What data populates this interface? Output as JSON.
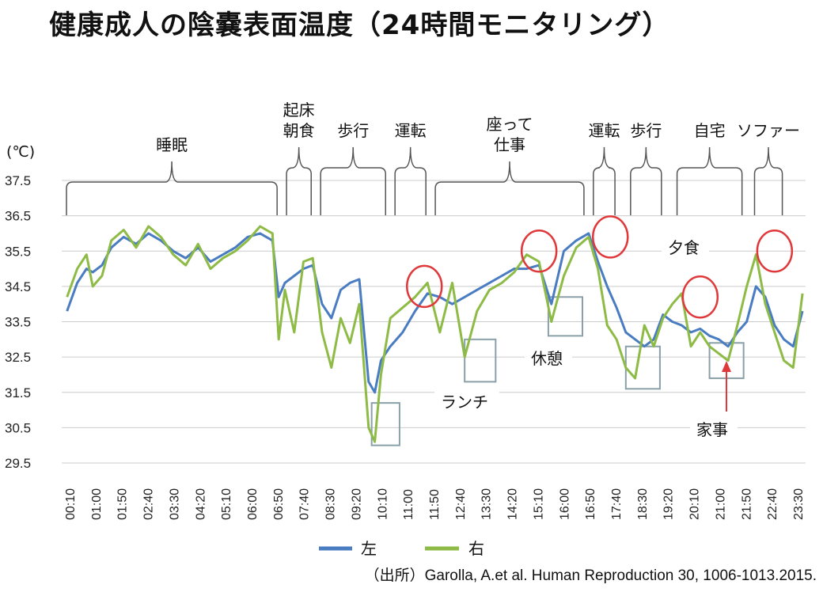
{
  "title": "健康成人の陰嚢表面温度（24時間モニタリング）",
  "source": "（出所）Garolla, A.et al. Human Reproduction 30, 1006-1013.2015.",
  "unit_label": "(℃)",
  "colors": {
    "left": "#4a7cc2",
    "right": "#8dbb45",
    "grid": "#cccccc",
    "bracket": "#555555",
    "box": "#8aa0a8",
    "circle": "#e0393b",
    "arrow": "#e0393b"
  },
  "chart_data": {
    "type": "line",
    "title": "健康成人の陰嚢表面温度（24時間モニタリング）",
    "xlabel": "",
    "ylabel": "(℃)",
    "ylim": [
      29.5,
      37.5
    ],
    "yticks": [
      "37.5",
      "36.5",
      "35.5",
      "34.5",
      "33.5",
      "32.5",
      "31.5",
      "30.5",
      "29.5"
    ],
    "ytick_values": [
      37.5,
      36.5,
      35.5,
      34.5,
      33.5,
      32.5,
      31.5,
      30.5,
      29.5
    ],
    "x_tick_labels": [
      "00:10",
      "01:00",
      "01:50",
      "02:40",
      "03:30",
      "04:20",
      "05:10",
      "06:00",
      "06:50",
      "07:40",
      "08:30",
      "09:20",
      "10:10",
      "11:00",
      "11:50",
      "12:40",
      "13:30",
      "14:20",
      "15:10",
      "16:00",
      "16:50",
      "17:40",
      "18:30",
      "19:20",
      "20:10",
      "21:00",
      "21:50",
      "22:40",
      "23:30"
    ],
    "x_time_hours": [
      0,
      24
    ],
    "grid": true,
    "legend_position": "bottom",
    "series": [
      {
        "name": "左",
        "x": [
          0.17,
          0.5,
          0.8,
          1.0,
          1.3,
          1.6,
          2.0,
          2.4,
          2.8,
          3.2,
          3.6,
          4.0,
          4.4,
          4.8,
          5.2,
          5.6,
          6.0,
          6.4,
          6.8,
          7.0,
          7.2,
          7.5,
          7.8,
          8.1,
          8.4,
          8.7,
          9.0,
          9.3,
          9.6,
          9.9,
          10.1,
          10.3,
          10.6,
          11.0,
          11.4,
          11.8,
          12.2,
          12.6,
          13.0,
          13.4,
          13.8,
          14.2,
          14.6,
          15.0,
          15.4,
          15.8,
          16.2,
          16.6,
          17.0,
          17.3,
          17.6,
          17.9,
          18.2,
          18.5,
          18.8,
          19.1,
          19.4,
          19.7,
          20.0,
          20.3,
          20.6,
          20.9,
          21.2,
          21.5,
          21.8,
          22.1,
          22.4,
          22.7,
          23.0,
          23.3,
          23.6,
          23.9
        ],
        "values": [
          33.8,
          34.6,
          35.0,
          34.9,
          35.1,
          35.6,
          35.9,
          35.7,
          36.0,
          35.8,
          35.5,
          35.3,
          35.6,
          35.2,
          35.4,
          35.6,
          35.9,
          36.0,
          35.8,
          34.2,
          34.6,
          34.8,
          35.0,
          35.1,
          34.0,
          33.6,
          34.4,
          34.6,
          34.7,
          31.8,
          31.5,
          32.4,
          32.8,
          33.2,
          33.8,
          34.3,
          34.2,
          34.0,
          34.2,
          34.4,
          34.6,
          34.8,
          35.0,
          35.0,
          35.1,
          34.0,
          35.5,
          35.8,
          36.0,
          35.2,
          34.5,
          33.9,
          33.2,
          33.0,
          32.8,
          33.0,
          33.7,
          33.5,
          33.4,
          33.2,
          33.3,
          33.1,
          33.0,
          32.8,
          33.2,
          33.5,
          34.5,
          34.2,
          33.4,
          33.0,
          32.8,
          33.8
        ]
      },
      {
        "name": "右",
        "x": [
          0.17,
          0.5,
          0.8,
          1.0,
          1.3,
          1.6,
          2.0,
          2.4,
          2.8,
          3.2,
          3.6,
          4.0,
          4.4,
          4.8,
          5.2,
          5.6,
          6.0,
          6.4,
          6.8,
          7.0,
          7.2,
          7.5,
          7.8,
          8.1,
          8.4,
          8.7,
          9.0,
          9.3,
          9.6,
          9.9,
          10.1,
          10.3,
          10.6,
          11.0,
          11.4,
          11.8,
          12.2,
          12.6,
          13.0,
          13.4,
          13.8,
          14.2,
          14.6,
          15.0,
          15.4,
          15.8,
          16.2,
          16.6,
          17.0,
          17.3,
          17.6,
          17.9,
          18.2,
          18.5,
          18.8,
          19.1,
          19.4,
          19.7,
          20.0,
          20.3,
          20.6,
          20.9,
          21.2,
          21.5,
          21.8,
          22.1,
          22.4,
          22.7,
          23.0,
          23.3,
          23.6,
          23.9
        ],
        "values": [
          34.2,
          35.0,
          35.4,
          34.5,
          34.8,
          35.8,
          36.1,
          35.6,
          36.2,
          35.9,
          35.4,
          35.1,
          35.7,
          35.0,
          35.3,
          35.5,
          35.8,
          36.2,
          36.0,
          33.0,
          34.4,
          33.2,
          35.2,
          35.3,
          33.2,
          32.2,
          33.6,
          32.9,
          34.0,
          30.5,
          30.1,
          32.0,
          33.6,
          33.9,
          34.2,
          34.6,
          33.2,
          34.6,
          32.5,
          33.8,
          34.4,
          34.6,
          34.9,
          35.4,
          35.2,
          33.5,
          34.8,
          35.6,
          35.9,
          35.0,
          33.4,
          33.0,
          32.2,
          31.9,
          33.4,
          32.8,
          33.6,
          34.0,
          34.3,
          32.8,
          33.2,
          32.8,
          32.6,
          32.4,
          33.4,
          34.5,
          35.4,
          34.0,
          33.2,
          32.4,
          32.2,
          34.3
        ]
      }
    ],
    "annotations": {
      "activities": [
        {
          "label": "睡眠",
          "lines": [
            "睡眠"
          ],
          "start": 0.0,
          "end": 7.0
        },
        {
          "label": "起床\n朝食",
          "lines": [
            "起床",
            "朝食"
          ],
          "start": 7.1,
          "end": 8.1
        },
        {
          "label": "歩行",
          "lines": [
            "歩行"
          ],
          "start": 8.2,
          "end": 10.5
        },
        {
          "label": "運転",
          "lines": [
            "運転"
          ],
          "start": 10.6,
          "end": 11.8
        },
        {
          "label": "座って\n仕事",
          "lines": [
            "座って",
            "仕事"
          ],
          "start": 11.9,
          "end": 16.9
        },
        {
          "label": "運転",
          "lines": [
            "運転"
          ],
          "start": 17.0,
          "end": 17.9
        },
        {
          "label": "歩行",
          "lines": [
            "歩行"
          ],
          "start": 18.2,
          "end": 19.4
        },
        {
          "label": "自宅",
          "lines": [
            "自宅"
          ],
          "start": 19.7,
          "end": 22.0
        },
        {
          "label": "ソファー",
          "lines": [
            "ソファー"
          ],
          "start": 22.2,
          "end": 23.3
        }
      ],
      "events": [
        {
          "label": "ランチ"
        },
        {
          "label": "休憩"
        },
        {
          "label": "夕食"
        },
        {
          "label": "家事"
        }
      ]
    }
  },
  "legend": {
    "left_label": "左",
    "right_label": "右"
  }
}
